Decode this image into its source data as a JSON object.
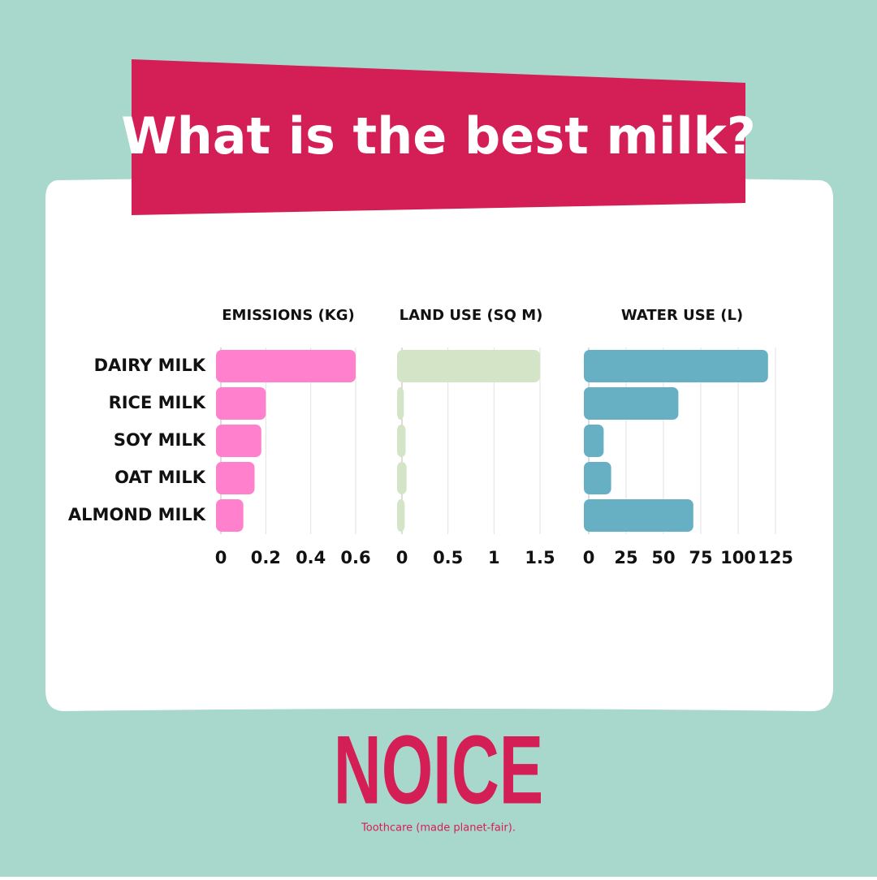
{
  "header": {
    "title": "What is the best milk?"
  },
  "chart_data": [
    {
      "type": "bar",
      "orientation": "horizontal",
      "title": "EMISSIONS (KG)",
      "categories": [
        "DAIRY MILK",
        "RICE MILK",
        "SOY MILK",
        "OAT MILK",
        "ALMOND MILK"
      ],
      "values": [
        0.6,
        0.2,
        0.18,
        0.15,
        0.1
      ],
      "color": "#ff80cc",
      "xlim": [
        0,
        0.6
      ],
      "xticks": [
        0,
        0.2,
        0.4,
        0.6
      ],
      "grid": true
    },
    {
      "type": "bar",
      "orientation": "horizontal",
      "title": "LAND USE (SQ M)",
      "values": [
        1.5,
        0.02,
        0.04,
        0.05,
        0.03
      ],
      "color": "#d3e5c6",
      "xlim": [
        0,
        1.5
      ],
      "xticks": [
        0,
        0.5,
        1,
        1.5
      ],
      "grid": true
    },
    {
      "type": "bar",
      "orientation": "horizontal",
      "title": "WATER USE (L)",
      "values": [
        120,
        60,
        10,
        15,
        70
      ],
      "color": "#67b0c4",
      "xlim": [
        0,
        125
      ],
      "xticks": [
        0,
        25,
        50,
        75,
        100,
        125
      ],
      "grid": true
    }
  ],
  "footer": {
    "logo": "NOICE",
    "tagline": "Toothcare (made planet-fair)."
  }
}
